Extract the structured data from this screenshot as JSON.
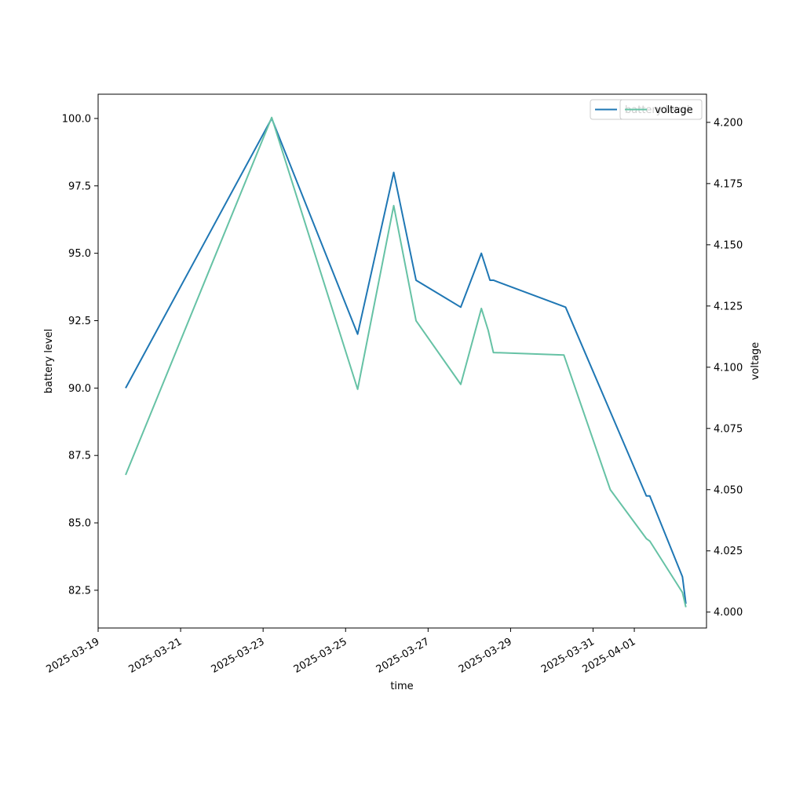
{
  "chart_data": {
    "type": "line",
    "xlabel": "time",
    "ylabel_left": "battery level",
    "ylabel_right": "voltage",
    "x_ticks": [
      "2025-03-19",
      "2025-03-21",
      "2025-03-23",
      "2025-03-25",
      "2025-03-27",
      "2025-03-29",
      "2025-03-31",
      "2025-04-01"
    ],
    "x_range": [
      "2025-03-19",
      "2025-04-02T18:00"
    ],
    "y_left_ticks": [
      "82.5",
      "85.0",
      "87.5",
      "90.0",
      "92.5",
      "95.0",
      "97.5",
      "100.0"
    ],
    "y_left_range": [
      81.1,
      100.9
    ],
    "y_right_ticks": [
      "4.000",
      "4.025",
      "4.050",
      "4.075",
      "4.100",
      "4.125",
      "4.150",
      "4.175",
      "4.200"
    ],
    "y_right_range": [
      3.9935,
      4.2115
    ],
    "legend_position": "top-right",
    "series": [
      {
        "name": "battery level",
        "axis": "left",
        "color": "#1f77b4",
        "points": [
          {
            "t": "2025-03-19T16:00",
            "y": 90.0
          },
          {
            "t": "2025-03-23T05:00",
            "y": 100.0
          },
          {
            "t": "2025-03-25T07:00",
            "y": 92.0
          },
          {
            "t": "2025-03-26T04:00",
            "y": 98.0
          },
          {
            "t": "2025-03-26T17:00",
            "y": 94.0
          },
          {
            "t": "2025-03-27T19:00",
            "y": 93.0
          },
          {
            "t": "2025-03-28T07:00",
            "y": 95.0
          },
          {
            "t": "2025-03-28T12:00",
            "y": 94.0
          },
          {
            "t": "2025-03-28T14:00",
            "y": 94.0
          },
          {
            "t": "2025-03-30T08:00",
            "y": 93.0
          },
          {
            "t": "2025-04-01T07:00",
            "y": 86.0
          },
          {
            "t": "2025-04-01T09:00",
            "y": 86.0
          },
          {
            "t": "2025-04-02T04:00",
            "y": 83.0
          },
          {
            "t": "2025-04-02T06:00",
            "y": 82.0
          }
        ]
      },
      {
        "name": "voltage",
        "axis": "right",
        "color": "#66c2a5",
        "points": [
          {
            "t": "2025-03-19T16:00",
            "y": 4.056
          },
          {
            "t": "2025-03-23T05:00",
            "y": 4.202
          },
          {
            "t": "2025-03-25T07:00",
            "y": 4.091
          },
          {
            "t": "2025-03-26T04:00",
            "y": 4.166
          },
          {
            "t": "2025-03-26T17:00",
            "y": 4.119
          },
          {
            "t": "2025-03-27T19:00",
            "y": 4.093
          },
          {
            "t": "2025-03-28T07:00",
            "y": 4.124
          },
          {
            "t": "2025-03-28T11:00",
            "y": 4.115
          },
          {
            "t": "2025-03-28T14:00",
            "y": 4.106
          },
          {
            "t": "2025-03-30T07:00",
            "y": 4.105
          },
          {
            "t": "2025-03-31T10:00",
            "y": 4.05
          },
          {
            "t": "2025-04-01T07:00",
            "y": 4.03
          },
          {
            "t": "2025-04-01T09:00",
            "y": 4.029
          },
          {
            "t": "2025-04-02T04:00",
            "y": 4.008
          },
          {
            "t": "2025-04-02T06:00",
            "y": 4.002
          }
        ]
      }
    ]
  }
}
